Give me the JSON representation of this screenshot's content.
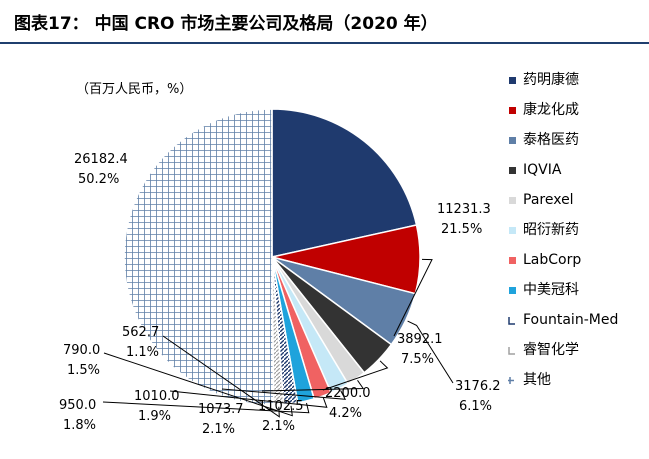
{
  "header": {
    "title": "图表17：  中国 CRO 市场主要公司及格局（2020 年）"
  },
  "chart_data": {
    "type": "pie",
    "unit_note": "（百万人民币，%）",
    "colors": {
      "accent_title_rule": "#1f3f6e"
    },
    "slices": [
      {
        "name": "药明康德",
        "value": 11231.3,
        "value_label": "11231.3",
        "pct_label": "21.5%",
        "color": "#1f3a6e",
        "pattern": "solid"
      },
      {
        "name": "康龙化成",
        "value": 3892.1,
        "value_label": "3892.1",
        "pct_label": "7.5%",
        "color": "#c00000",
        "pattern": "solid"
      },
      {
        "name": "泰格医药",
        "value": 3176.2,
        "value_label": "3176.2",
        "pct_label": "6.1%",
        "color": "#5f7fa7",
        "pattern": "solid"
      },
      {
        "name": "IQVIA",
        "value": 2200.0,
        "value_label": "2200.0",
        "pct_label": "4.2%",
        "color": "#333333",
        "pattern": "solid"
      },
      {
        "name": "Parexel",
        "value": 1102.5,
        "value_label": "1102.5",
        "pct_label": "2.1%",
        "color": "#d9d9d9",
        "pattern": "solid"
      },
      {
        "name": "昭衍新药",
        "value": 1073.7,
        "value_label": "1073.7",
        "pct_label": "2.1%",
        "color": "#c5e8f7",
        "pattern": "solid"
      },
      {
        "name": "LabCorp",
        "value": 1010.0,
        "value_label": "1010.0",
        "pct_label": "1.9%",
        "color": "#f06262",
        "pattern": "solid"
      },
      {
        "name": "中美冠科",
        "value": 950.0,
        "value_label": "950.0",
        "pct_label": "1.8%",
        "color": "#1fa3dc",
        "pattern": "solid"
      },
      {
        "name": "Fountain-Med",
        "value": 790.0,
        "value_label": "790.0",
        "pct_label": "1.5%",
        "color": "#1f3a6e",
        "pattern": "hatch-dark"
      },
      {
        "name": "睿智化学",
        "value": 562.7,
        "value_label": "562.7",
        "pct_label": "1.1%",
        "color": "#a0a0a0",
        "pattern": "hatch-light"
      },
      {
        "name": "其他",
        "value": 26182.4,
        "value_label": "26182.4",
        "pct_label": "50.2%",
        "color": "#5f7fa7",
        "pattern": "grid"
      }
    ]
  }
}
